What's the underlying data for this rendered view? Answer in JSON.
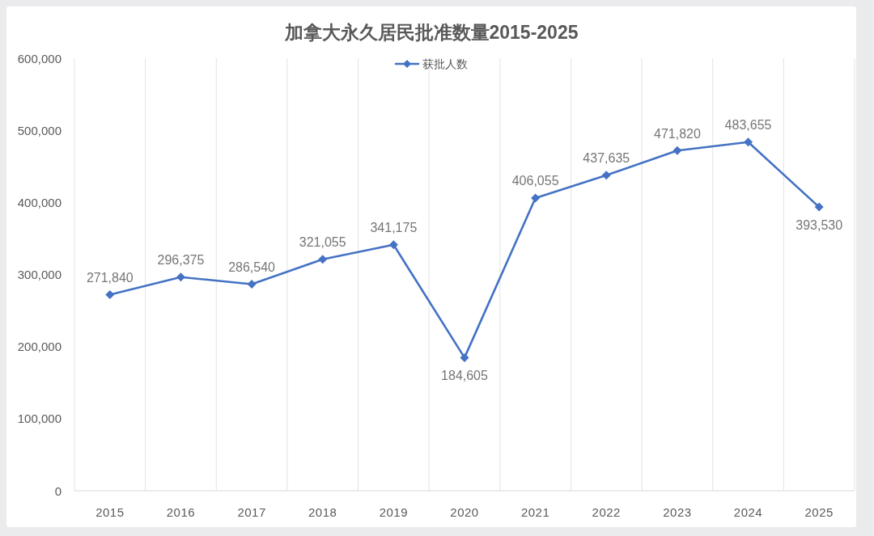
{
  "chart_data": {
    "type": "line",
    "title": "加拿大永久居民批准数量2015-2025",
    "categories": [
      "2015",
      "2016",
      "2017",
      "2018",
      "2019",
      "2020",
      "2021",
      "2022",
      "2023",
      "2024",
      "2025"
    ],
    "series": [
      {
        "name": "获批人数",
        "color": "#4472c4",
        "values": [
          271840,
          296375,
          286540,
          321055,
          341175,
          184605,
          406055,
          437635,
          471820,
          483655,
          393530
        ],
        "value_labels": [
          "271,840",
          "296,375",
          "286,540",
          "321,055",
          "341,175",
          "184,605",
          "406,055",
          "437,635",
          "471,820",
          "483,655",
          "393,530"
        ]
      }
    ],
    "ylim": [
      0,
      600000
    ],
    "yticks": [
      0,
      {
        "value": 100000,
        "label": "100,000"
      },
      {
        "value": 200000,
        "label": "200,000"
      },
      {
        "value": 300000,
        "label": "300,000"
      },
      {
        "value": 400000,
        "label": "400,000"
      },
      {
        "value": 500000,
        "label": "500,000"
      },
      {
        "value": 600000,
        "label": "600,000"
      }
    ],
    "grid": "x",
    "legend": "top",
    "marker": "diamond",
    "line_style": "solid"
  }
}
